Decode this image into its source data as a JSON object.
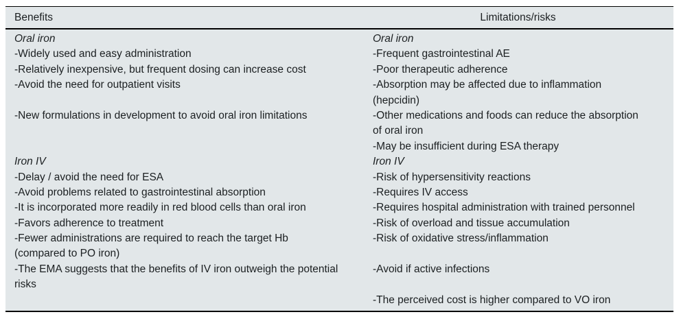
{
  "table": {
    "header": {
      "benefits": "Benefits",
      "limitations": "Limitations/risks"
    },
    "left_lines": [
      "Oral iron",
      "-Widely used and easy administration",
      "-Relatively inexpensive, but frequent dosing can increase cost",
      "-Avoid the need for outpatient visits",
      "",
      "-New formulations in development to avoid oral iron limitations",
      "",
      "",
      "Iron IV",
      "-Delay / avoid the need for ESA",
      "-Avoid problems related to gastrointestinal absorption",
      "-It is incorporated more readily in red blood cells than oral iron",
      "-Favors adherence to treatment",
      "-Fewer administrations are required to reach the target Hb",
      "(compared to PO iron)",
      "-The EMA suggests that the benefits of IV iron outweigh the potential",
      "risks",
      ""
    ],
    "right_lines": [
      "Oral iron",
      "-Frequent gastrointestinal AE",
      "-Poor therapeutic adherence",
      "-Absorption may be affected due to inflammation",
      "(hepcidin)",
      "-Other medications and foods can reduce the absorption",
      "of oral iron",
      "-May be insufficient during ESA therapy",
      "Iron IV",
      "-Risk of hypersensitivity reactions",
      "-Requires IV access",
      "-Requires hospital administration with trained personnel",
      "-Risk of overload and tissue accumulation",
      "-Risk of oxidative stress/inflammation",
      "",
      "-Avoid if active infections",
      "",
      "-The perceived cost is higher compared to VO iron"
    ],
    "colors": {
      "table_background": "#e2e7e9",
      "rule": "#000000",
      "text": "#1b1f21"
    }
  }
}
